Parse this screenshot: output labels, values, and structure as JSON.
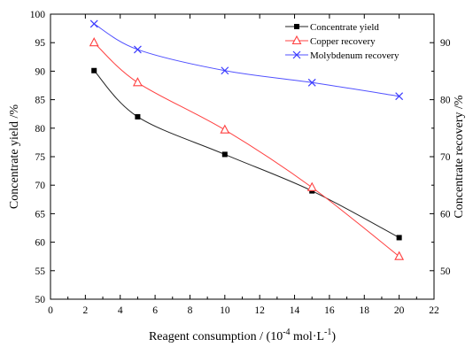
{
  "chart_data": {
    "type": "line",
    "x": [
      2.5,
      5,
      10,
      15,
      20
    ],
    "xlim": [
      0,
      22
    ],
    "xticks": [
      0,
      2,
      4,
      6,
      8,
      10,
      12,
      14,
      16,
      18,
      20,
      22
    ],
    "ylim_left": [
      50,
      100
    ],
    "yticks_left": [
      50,
      55,
      60,
      65,
      70,
      75,
      80,
      85,
      90,
      95,
      100
    ],
    "ylim_right": [
      45,
      95
    ],
    "yticks_right": [
      50,
      60,
      70,
      80,
      90
    ],
    "xlabel": "Reagent consumption / (10",
    "xlabel_exp": "-4",
    "xlabel_unit": " mol·L",
    "xlabel_unit_exp": "-1",
    "xlabel_close": ")",
    "ylabel_left": "Concentrate yield /%",
    "ylabel_right": "Concentrate recovery /%",
    "legend_position": "top-right",
    "series": [
      {
        "name": "Concentrate yield",
        "axis": "left",
        "marker": "square",
        "color": "#000000",
        "line_color": "#222222",
        "values": [
          90.1,
          82.0,
          75.4,
          69.0,
          60.8
        ]
      },
      {
        "name": "Copper recovery",
        "axis": "left",
        "marker": "triangle",
        "color": "#ff4040",
        "line_color": "#ff4040",
        "values": [
          95.0,
          88.0,
          79.7,
          69.6,
          57.5
        ]
      },
      {
        "name": "Molybdenum recovery",
        "axis": "right",
        "marker": "x",
        "color": "#3a3aff",
        "line_color": "#5050ff",
        "values": [
          93.3,
          88.8,
          85.1,
          83.0,
          80.6
        ]
      }
    ]
  }
}
